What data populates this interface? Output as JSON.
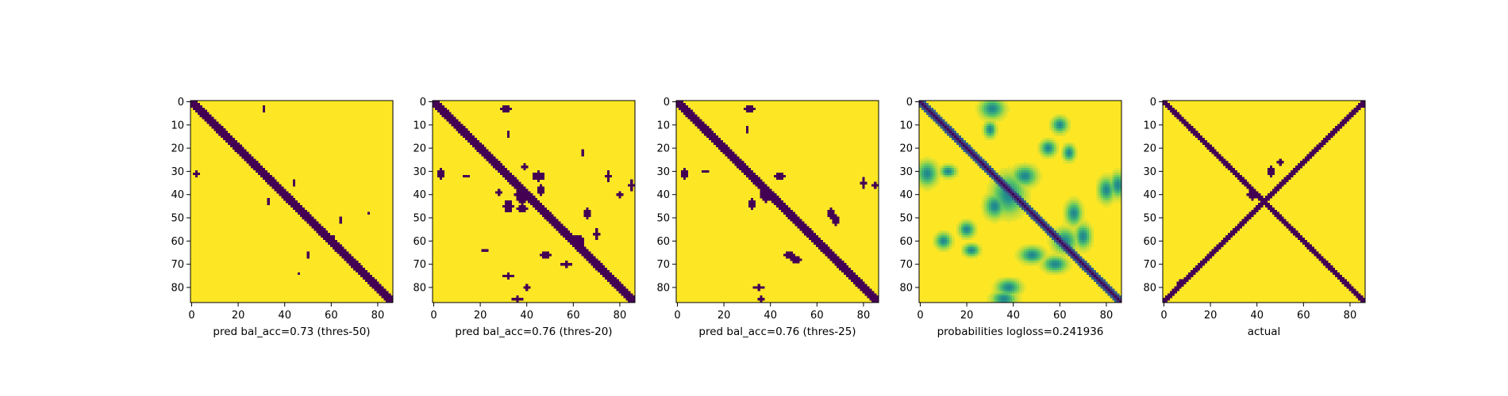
{
  "figure": {
    "background": "#ffffff",
    "colors": {
      "low": "#440154",
      "high": "#fde725"
    },
    "colormap": "viridis"
  },
  "chart_data": [
    {
      "type": "heatmap",
      "title": "",
      "xlabel": "pred bal_acc=0.73 (thres-50)",
      "ylabel": "",
      "n": 87,
      "xlim": [
        0,
        86
      ],
      "ylim": [
        86,
        0
      ],
      "xticks": [
        0,
        20,
        40,
        60,
        80
      ],
      "yticks": [
        0,
        10,
        20,
        30,
        40,
        50,
        60,
        70,
        80
      ],
      "binary": true,
      "diagonals": [
        {
          "from": 0,
          "to": 86,
          "width": 2.2
        }
      ],
      "antidiagonals": [],
      "blobs": [
        [
          31,
          2,
          1.2,
          1.2
        ],
        [
          3,
          31,
          1.2,
          0.8
        ],
        [
          35,
          44,
          1,
          0.6
        ],
        [
          43,
          33,
          1,
          0.6
        ],
        [
          51,
          64,
          1,
          0.6
        ],
        [
          66,
          50,
          1,
          0.6
        ],
        [
          59,
          60,
          1.5,
          1.5
        ],
        [
          48,
          76,
          0.5,
          0.5
        ],
        [
          74,
          46,
          0.5,
          0.5
        ]
      ]
    },
    {
      "type": "heatmap",
      "title": "",
      "xlabel": "pred bal_acc=0.76 (thres-20)",
      "ylabel": "",
      "n": 87,
      "xlim": [
        0,
        86
      ],
      "ylim": [
        86,
        0
      ],
      "xticks": [
        0,
        20,
        40,
        60,
        80
      ],
      "yticks": [
        0,
        10,
        20,
        30,
        40,
        50,
        60,
        70,
        80
      ],
      "binary": true,
      "diagonals": [
        {
          "from": 0,
          "to": 86,
          "width": 2.4
        }
      ],
      "antidiagonals": [],
      "blobs": [
        [
          31,
          3,
          2.5,
          1.5
        ],
        [
          3,
          31,
          1.5,
          2.5
        ],
        [
          40,
          38,
          4,
          3
        ],
        [
          38,
          46,
          2,
          1.5
        ],
        [
          46,
          38,
          1.5,
          2
        ],
        [
          32,
          45,
          2,
          2.5
        ],
        [
          45,
          32,
          2.5,
          2
        ],
        [
          48,
          66,
          2.5,
          1.5
        ],
        [
          66,
          48,
          1.5,
          2.5
        ],
        [
          60,
          62,
          2.5,
          2.5
        ],
        [
          36,
          85,
          2,
          1
        ],
        [
          85,
          36,
          1,
          2
        ],
        [
          22,
          64,
          1,
          0.7
        ],
        [
          64,
          22,
          0.7,
          1
        ],
        [
          75,
          32,
          1,
          2
        ],
        [
          32,
          75,
          2,
          1
        ],
        [
          80,
          40,
          1,
          1
        ],
        [
          40,
          80,
          1,
          1
        ],
        [
          57,
          70,
          2,
          1
        ],
        [
          70,
          57,
          1,
          2
        ],
        [
          14,
          32,
          1,
          0.8
        ],
        [
          32,
          14,
          0.8,
          1
        ],
        [
          28,
          39,
          1.5,
          1
        ],
        [
          39,
          28,
          1,
          1.5
        ]
      ]
    },
    {
      "type": "heatmap",
      "title": "",
      "xlabel": "pred bal_acc=0.76 (thres-25)",
      "ylabel": "",
      "n": 87,
      "xlim": [
        0,
        86
      ],
      "ylim": [
        86,
        0
      ],
      "xticks": [
        0,
        20,
        40,
        60,
        80
      ],
      "yticks": [
        0,
        10,
        20,
        30,
        40,
        50,
        60,
        70,
        80
      ],
      "binary": true,
      "diagonals": [
        {
          "from": 0,
          "to": 86,
          "width": 2.3
        }
      ],
      "antidiagonals": [],
      "blobs": [
        [
          31,
          3,
          2,
          1.2
        ],
        [
          3,
          31,
          1.2,
          2
        ],
        [
          40,
          38,
          3,
          2.5
        ],
        [
          44,
          32,
          2,
          1.5
        ],
        [
          32,
          44,
          1.5,
          2
        ],
        [
          48,
          66,
          2.5,
          1.5
        ],
        [
          66,
          48,
          1.5,
          2.5
        ],
        [
          36,
          85,
          1.5,
          1
        ],
        [
          85,
          36,
          1,
          1.5
        ],
        [
          68,
          51,
          1.5,
          2
        ],
        [
          51,
          68,
          2,
          1.5
        ],
        [
          80,
          35,
          1,
          2
        ],
        [
          35,
          80,
          2,
          1
        ],
        [
          12,
          30,
          1,
          0.6
        ],
        [
          30,
          12,
          0.6,
          1
        ]
      ]
    },
    {
      "type": "heatmap",
      "title": "",
      "xlabel": "probabilities logloss=0.241936",
      "ylabel": "",
      "n": 87,
      "xlim": [
        0,
        86
      ],
      "ylim": [
        86,
        0
      ],
      "xticks": [
        0,
        20,
        40,
        60,
        80
      ],
      "yticks": [
        0,
        10,
        20,
        30,
        40,
        50,
        60,
        70,
        80
      ],
      "binary": false,
      "vmin": 0,
      "vmax": 1,
      "diagonals": [
        {
          "from": 0,
          "to": 86,
          "width": 2.5
        }
      ],
      "antidiagonals": [],
      "blobs": [
        [
          31,
          3,
          3,
          2.5
        ],
        [
          3,
          31,
          2.5,
          3
        ],
        [
          40,
          38,
          5,
          4
        ],
        [
          45,
          32,
          3,
          2.5
        ],
        [
          32,
          45,
          2.5,
          3
        ],
        [
          48,
          66,
          3,
          2
        ],
        [
          66,
          48,
          2,
          3
        ],
        [
          60,
          62,
          3,
          3
        ],
        [
          36,
          85,
          3,
          2
        ],
        [
          85,
          36,
          2,
          3
        ],
        [
          80,
          38,
          2,
          3
        ],
        [
          38,
          80,
          3,
          2
        ],
        [
          22,
          64,
          2,
          1.5
        ],
        [
          64,
          22,
          1.5,
          2
        ],
        [
          12,
          30,
          2,
          1.5
        ],
        [
          30,
          12,
          1.5,
          2
        ],
        [
          55,
          20,
          2,
          2
        ],
        [
          20,
          55,
          2,
          2
        ],
        [
          70,
          58,
          2,
          3
        ],
        [
          58,
          70,
          3,
          2
        ],
        [
          10,
          60,
          2,
          2
        ],
        [
          60,
          10,
          2,
          2
        ]
      ],
      "blob_strength": 0.55
    },
    {
      "type": "heatmap",
      "title": "",
      "xlabel": "actual",
      "ylabel": "",
      "n": 87,
      "xlim": [
        0,
        86
      ],
      "ylim": [
        86,
        0
      ],
      "xticks": [
        0,
        20,
        40,
        60,
        80
      ],
      "yticks": [
        0,
        10,
        20,
        30,
        40,
        50,
        60,
        70,
        80
      ],
      "binary": true,
      "diagonals": [
        {
          "from": 0,
          "to": 86,
          "width": 1.6
        }
      ],
      "antidiagonals": [
        {
          "from": 0,
          "to": 86,
          "width": 1.6
        }
      ],
      "blobs": [
        [
          30,
          46,
          2.5,
          1.2
        ],
        [
          26,
          50,
          1.5,
          1
        ],
        [
          40,
          38,
          2,
          2
        ],
        [
          3,
          83,
          1,
          1
        ],
        [
          2,
          86,
          0.7,
          0.7
        ],
        [
          84,
          2,
          0.7,
          0.7
        ],
        [
          78,
          7,
          1,
          1
        ]
      ]
    }
  ]
}
